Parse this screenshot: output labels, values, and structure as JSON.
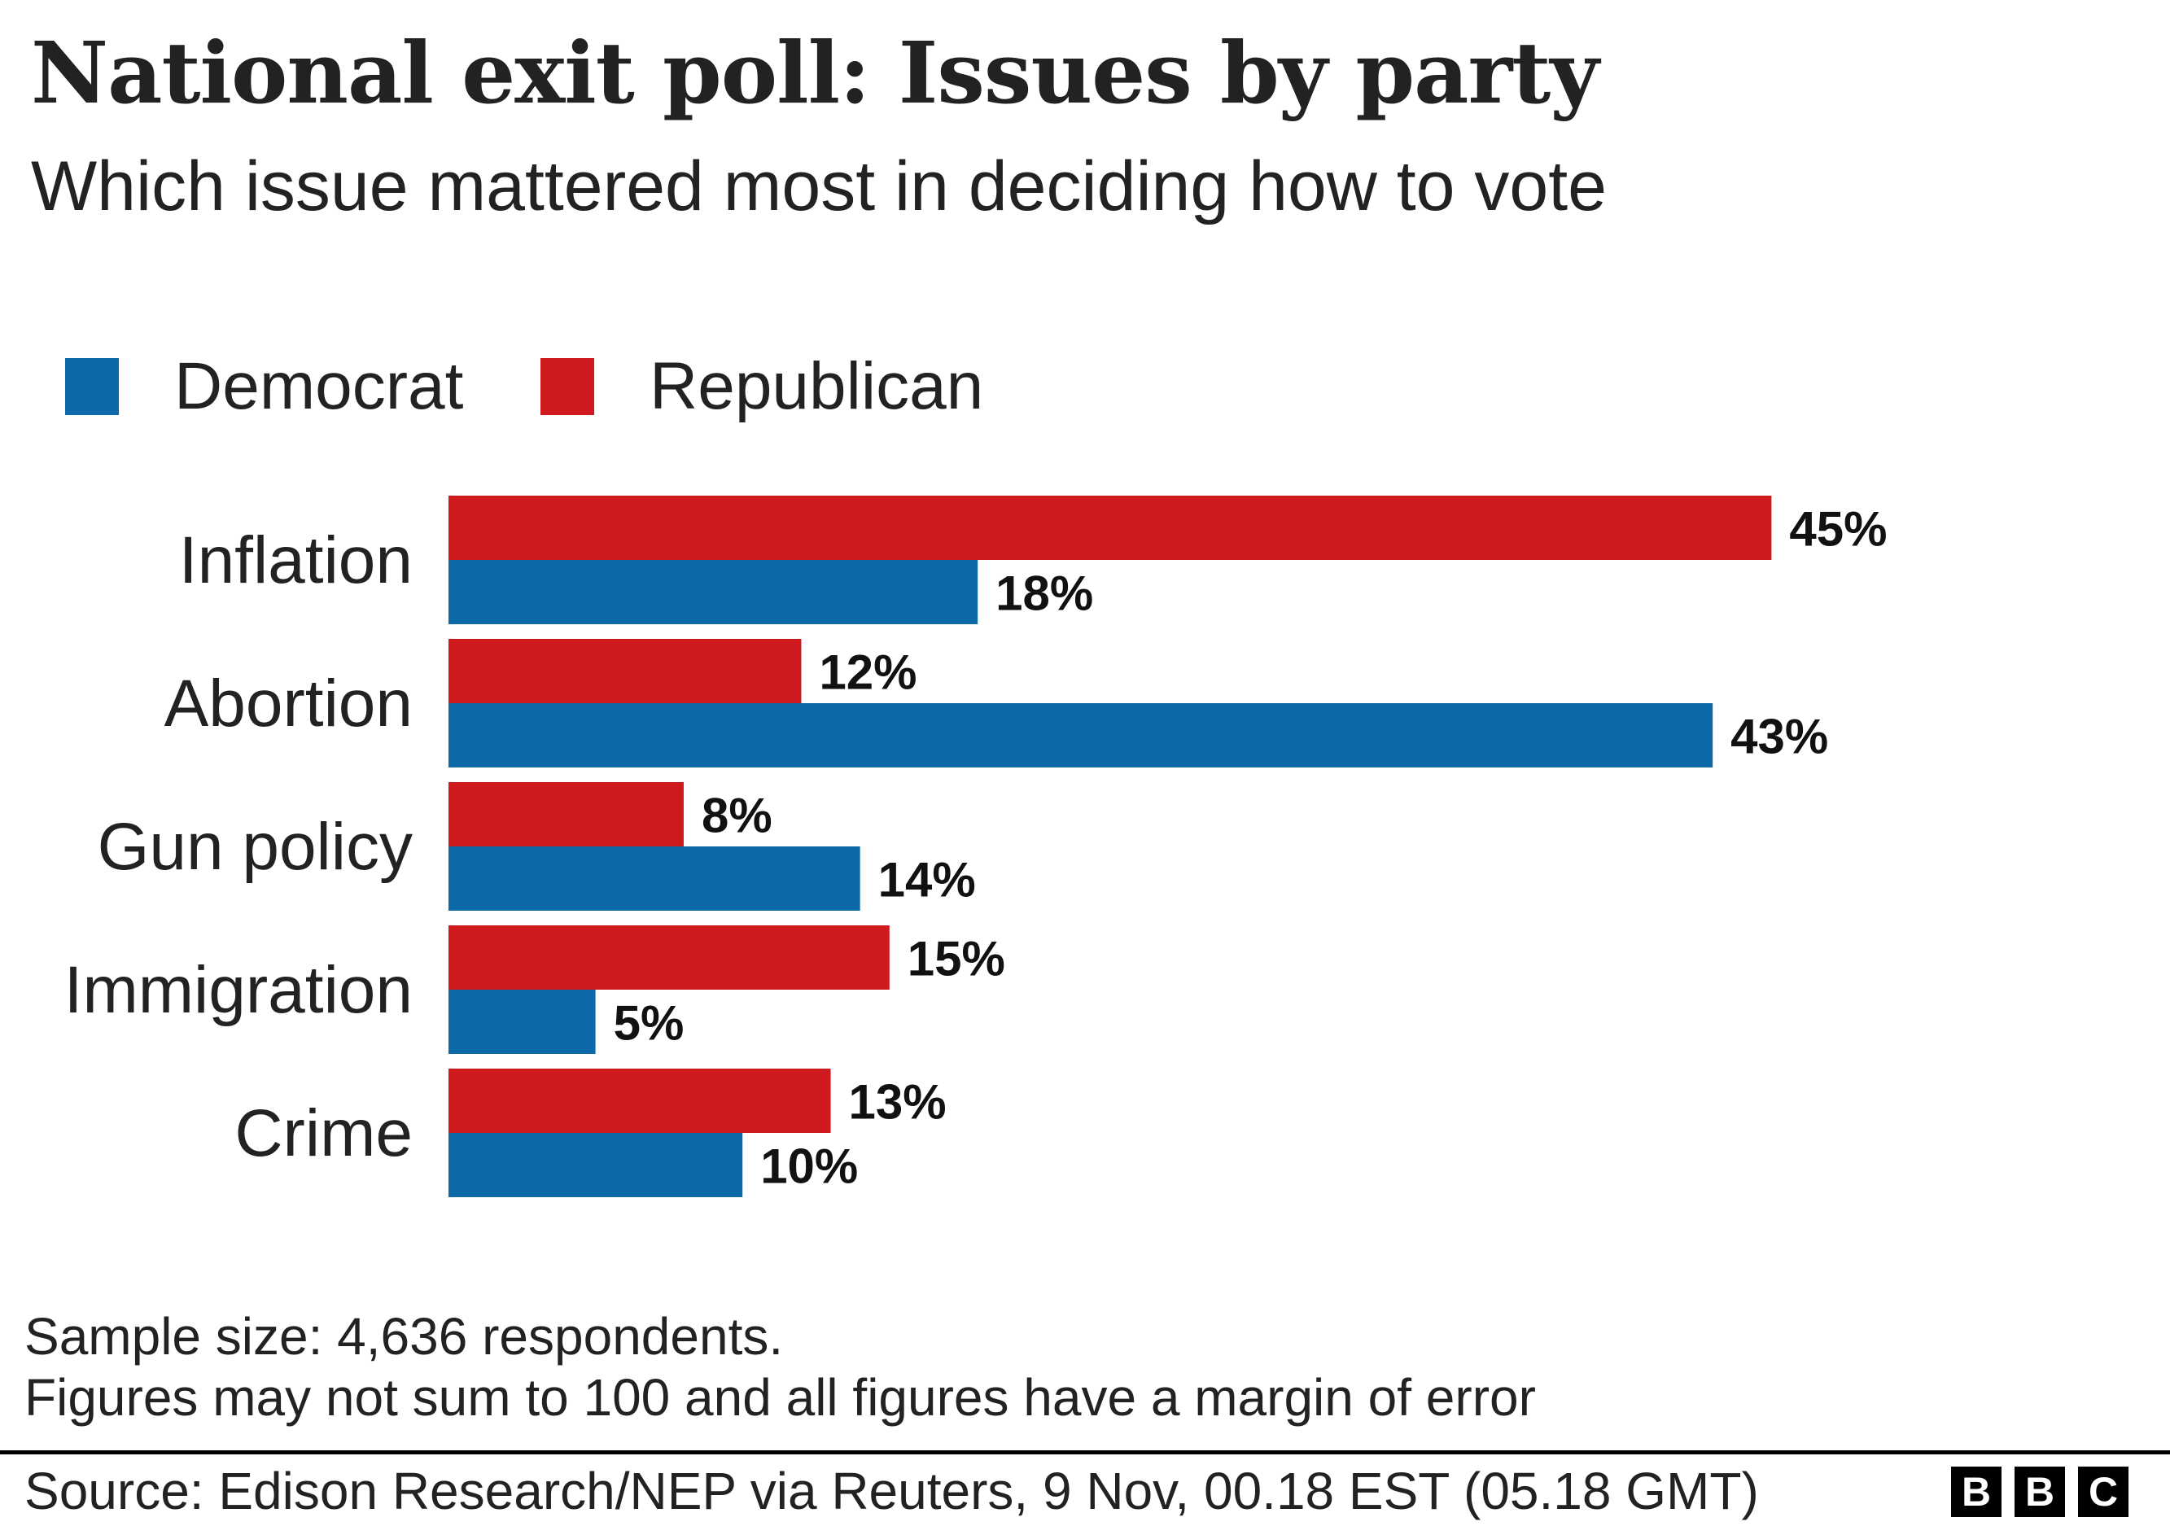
{
  "title": "National exit poll: Issues by party",
  "subtitle": "Which issue mattered most in deciding how to vote",
  "legend": [
    {
      "label": "Democrat",
      "color": "#0c6aa8"
    },
    {
      "label": "Republican",
      "color": "#ce1a1e"
    }
  ],
  "chart_data": {
    "type": "bar",
    "orientation": "horizontal",
    "categories": [
      "Inflation",
      "Abortion",
      "Gun policy",
      "Immigration",
      "Crime"
    ],
    "series": [
      {
        "name": "Republican",
        "color": "#ce1a1e",
        "values": [
          45,
          12,
          8,
          15,
          13
        ]
      },
      {
        "name": "Democrat",
        "color": "#0c6aa8",
        "values": [
          18,
          43,
          14,
          5,
          10
        ]
      }
    ],
    "value_suffix": "%",
    "xlim": [
      0,
      45
    ],
    "grid": false,
    "legend_position": "top-left"
  },
  "notes": [
    "Sample size: 4,636 respondents.",
    "Figures may not sum to 100 and all figures have a margin of error"
  ],
  "source": "Source: Edison Research/NEP via Reuters, 9 Nov, 00.18 EST (05.18 GMT)",
  "logo": [
    "B",
    "B",
    "C"
  ]
}
